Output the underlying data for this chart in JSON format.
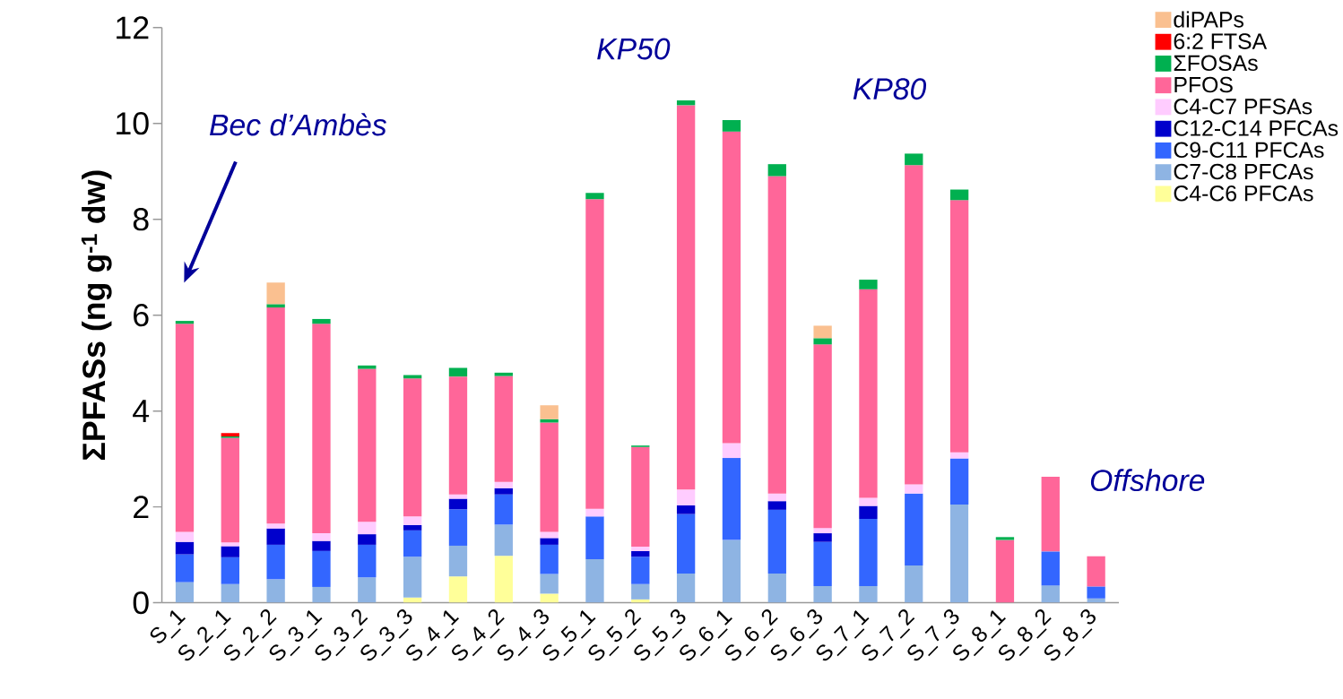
{
  "chart_data": {
    "type": "bar",
    "stacked": true,
    "ylabel": "ΣPFASs (ng g$^{-1}$ dw)",
    "categories": [
      "S_1",
      "S_2_1",
      "S_2_2",
      "S_3_1",
      "S_3_2",
      "S_3_3",
      "S_4_1",
      "S_4_2",
      "S_4_3",
      "S_5_1",
      "S_5_2",
      "S_5_3",
      "S_6_1",
      "S_6_2",
      "S_6_3",
      "S_7_1",
      "S_7_2",
      "S_7_3",
      "S_8_1",
      "S_8_2",
      "S_8_3"
    ],
    "series": [
      {
        "name": "C4-C6 PFCAs",
        "color": "#ffff99",
        "values": [
          null,
          null,
          null,
          null,
          null,
          0.11,
          0.55,
          0.98,
          0.19,
          null,
          0.07,
          null,
          null,
          null,
          null,
          null,
          null,
          null,
          null,
          null,
          null
        ]
      },
      {
        "name": "C7-C8 PFCAs",
        "color": "#8eb4e3",
        "values": [
          0.43,
          0.39,
          0.49,
          0.33,
          0.53,
          0.85,
          0.64,
          0.65,
          0.41,
          0.91,
          0.32,
          0.61,
          1.31,
          0.61,
          0.35,
          0.35,
          0.78,
          2.05,
          null,
          0.36,
          0.09
        ]
      },
      {
        "name": "C9-C11 PFCAs",
        "color": "#3366ff",
        "values": [
          0.58,
          0.56,
          0.72,
          0.75,
          0.68,
          0.55,
          0.76,
          0.63,
          0.61,
          0.89,
          0.57,
          1.24,
          1.71,
          1.33,
          0.92,
          1.4,
          1.5,
          0.96,
          null,
          0.71,
          0.25
        ]
      },
      {
        "name": "C12-C14 PFCAs",
        "color": "#0000cc",
        "values": [
          0.26,
          0.23,
          0.34,
          0.21,
          0.22,
          0.11,
          0.22,
          0.13,
          0.14,
          null,
          0.12,
          0.18,
          null,
          0.18,
          0.18,
          0.27,
          null,
          null,
          null,
          null,
          null
        ]
      },
      {
        "name": "C4-C7 PFSAs",
        "color": "#ffccff",
        "values": [
          0.21,
          0.08,
          0.1,
          0.16,
          0.26,
          0.18,
          0.09,
          0.13,
          0.13,
          0.16,
          0.09,
          0.33,
          0.31,
          0.16,
          0.11,
          0.17,
          0.19,
          0.13,
          null,
          null,
          null
        ]
      },
      {
        "name": "PFOS",
        "color": "#ff6699",
        "values": [
          4.34,
          2.18,
          4.51,
          4.37,
          3.19,
          2.88,
          2.46,
          2.21,
          2.28,
          6.46,
          2.08,
          8.02,
          6.5,
          6.62,
          3.83,
          4.35,
          6.66,
          5.26,
          1.31,
          1.56,
          0.63
        ]
      },
      {
        "name": "ΣFOSAs",
        "color": "#00b050",
        "values": [
          0.06,
          0.03,
          0.07,
          0.1,
          0.07,
          0.07,
          0.18,
          0.07,
          0.07,
          0.13,
          0.03,
          0.1,
          0.24,
          0.25,
          0.13,
          0.2,
          0.24,
          0.22,
          0.06,
          null,
          null
        ]
      },
      {
        "name": "6:2 FTSA",
        "color": "#ff0000",
        "values": [
          null,
          0.07,
          null,
          null,
          null,
          null,
          null,
          null,
          null,
          null,
          null,
          null,
          null,
          null,
          null,
          null,
          null,
          null,
          null,
          null,
          null
        ]
      },
      {
        "name": "diPAPs",
        "color": "#fac090",
        "values": [
          null,
          null,
          0.45,
          null,
          null,
          null,
          null,
          null,
          0.29,
          null,
          null,
          null,
          null,
          null,
          0.26,
          null,
          null,
          null,
          null,
          null,
          null
        ]
      }
    ],
    "ylim": [
      0,
      12
    ],
    "yticks": [
      0,
      2,
      4,
      6,
      8,
      10,
      12
    ],
    "legend": "top right",
    "annotations": [
      "Bec d’Ambès",
      "KP50",
      "KP80",
      "Offshore"
    ]
  }
}
